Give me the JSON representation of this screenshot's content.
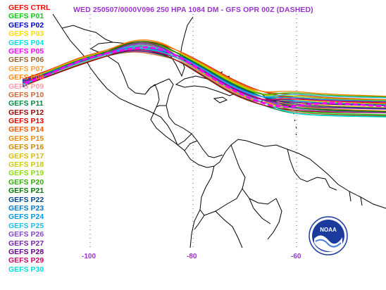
{
  "title": "WED 250507/0000V096  250 HPA 1084 DM - GFS OPR 00Z (DASHED)",
  "colors": {
    "title": "#9933cc",
    "coast": "#000000",
    "grid": "#9933cc",
    "opr": "#ff00ff"
  },
  "legend": [
    {
      "label": "GEFS CTRL",
      "color": "#ff0000"
    },
    {
      "label": "GEFS P01",
      "color": "#00cc00"
    },
    {
      "label": "GEFS P02",
      "color": "#0000cc"
    },
    {
      "label": "GEFS P03",
      "color": "#ffdd00"
    },
    {
      "label": "GEFS P04",
      "color": "#00e0e0"
    },
    {
      "label": "GEFS P05",
      "color": "#ff00ff"
    },
    {
      "label": "GEFS P06",
      "color": "#996633"
    },
    {
      "label": "GEFS P07",
      "color": "#ff9933"
    },
    {
      "label": "GEFS P08",
      "color": "#ff8800"
    },
    {
      "label": "GEFS P09",
      "color": "#ff99aa"
    },
    {
      "label": "GEFS P10",
      "color": "#cc6633"
    },
    {
      "label": "GEFS P11",
      "color": "#008844"
    },
    {
      "label": "GEFS P12",
      "color": "#990000"
    },
    {
      "label": "GEFS P13",
      "color": "#dd0000"
    },
    {
      "label": "GEFS P14",
      "color": "#ee5500"
    },
    {
      "label": "GEFS P15",
      "color": "#ee8800"
    },
    {
      "label": "GEFS P16",
      "color": "#cc8800"
    },
    {
      "label": "GEFS P17",
      "color": "#ddbb00"
    },
    {
      "label": "GEFS P18",
      "color": "#cccc00"
    },
    {
      "label": "GEFS P19",
      "color": "#88dd00"
    },
    {
      "label": "GEFS P20",
      "color": "#33aa00"
    },
    {
      "label": "GEFS P21",
      "color": "#007700"
    },
    {
      "label": "GEFS P22",
      "color": "#004488"
    },
    {
      "label": "GEFS P23",
      "color": "#0077cc"
    },
    {
      "label": "GEFS P24",
      "color": "#0099dd"
    },
    {
      "label": "GEFS P25",
      "color": "#22bbee"
    },
    {
      "label": "GEFS P26",
      "color": "#8844cc"
    },
    {
      "label": "GEFS P27",
      "color": "#7722aa"
    },
    {
      "label": "GEFS P28",
      "color": "#660088"
    },
    {
      "label": "GEFS P29",
      "color": "#cc0066"
    },
    {
      "label": "GEFS P30",
      "color": "#00dddd"
    }
  ],
  "axis": {
    "lon_labels": [
      "-100",
      "-80",
      "-60"
    ]
  },
  "logo": {
    "text": "NOAA",
    "fill": "#1a3a9c"
  }
}
